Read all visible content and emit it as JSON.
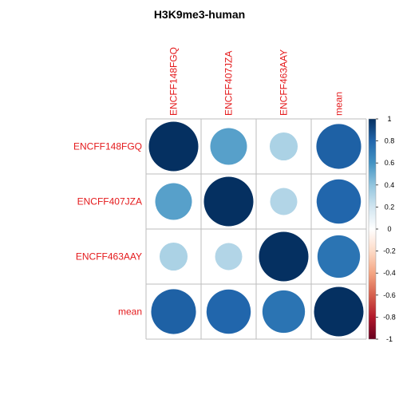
{
  "chart_data": {
    "type": "heatmap",
    "title": "H3K9me3-human",
    "rows": [
      "ENCFF148FGQ",
      "ENCFF407JZA",
      "ENCFF463AAY",
      "mean"
    ],
    "cols": [
      "ENCFF148FGQ",
      "ENCFF407JZA",
      "ENCFF463AAY",
      "mean"
    ],
    "values": [
      [
        1.0,
        0.55,
        0.32,
        0.82
      ],
      [
        0.55,
        1.0,
        0.3,
        0.8
      ],
      [
        0.32,
        0.3,
        1.0,
        0.74
      ],
      [
        0.82,
        0.8,
        0.74,
        1.0
      ]
    ],
    "colorbar": {
      "range": [
        -1,
        1
      ],
      "ticks": [
        "1",
        "0.8",
        "0.6",
        "0.4",
        "0.2",
        "0",
        "-0.2",
        "-0.4",
        "-0.6",
        "-0.8",
        "-1"
      ]
    },
    "colors": {
      "label": "#e41a1c",
      "grid": "#bebebe",
      "scale": [
        "#67001f",
        "#b2182b",
        "#d6604d",
        "#f4a582",
        "#fddbc7",
        "#ffffff",
        "#d1e5f0",
        "#92c5de",
        "#4393c3",
        "#2166ac",
        "#053061"
      ]
    }
  }
}
